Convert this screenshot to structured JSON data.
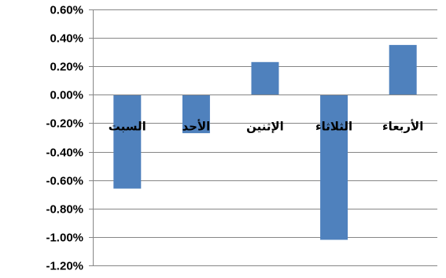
{
  "chart_data": {
    "type": "bar",
    "categories": [
      "السبت",
      "الأحد",
      "الإثنين",
      "الثلاثاء",
      "الأربعاء"
    ],
    "values": [
      -0.66,
      -0.27,
      0.23,
      -1.02,
      0.35
    ],
    "unit": "%",
    "ylim": [
      -1.2,
      0.6
    ],
    "yticks": [
      0.6,
      0.4,
      0.2,
      0.0,
      -0.2,
      -0.4,
      -0.6,
      -0.8,
      -1.0,
      -1.2
    ],
    "ytick_labels": [
      "0.60%",
      "0.40%",
      "0.20%",
      "0.00%",
      "-0.20%",
      "-0.40%",
      "-0.60%",
      "-0.80%",
      "-1.00%",
      "-1.20%"
    ],
    "grid": true,
    "bar_color": "#4F81BD",
    "category_label_position": "just below zero line",
    "title": "",
    "xlabel": "",
    "ylabel": ""
  }
}
